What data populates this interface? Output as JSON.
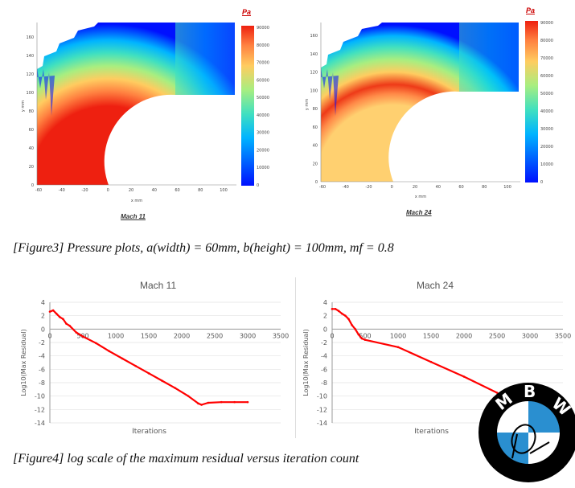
{
  "figure3": {
    "caption": "[Figure3] Pressure plots, a(width) = 60mm, b(height) = 100mm, mf = 0.8",
    "colorbar_unit": "Pa",
    "colors": [
      "#0010ff",
      "#00b4ff",
      "#40e0c0",
      "#a8ee80",
      "#ffcc60",
      "#ff8040",
      "#ee2010"
    ],
    "plots": [
      {
        "label": "Mach 11",
        "x_axis_label": "x mm",
        "y_axis_label": "y mm",
        "x_ticks": [
          "-60",
          "-40",
          "-20",
          "0",
          "20",
          "40",
          "60",
          "80",
          "100"
        ],
        "y_ticks": [
          "0",
          "20",
          "40",
          "60",
          "80",
          "100",
          "120",
          "140",
          "160"
        ],
        "colorbar_ticks": [
          "0",
          "10000",
          "20000",
          "30000",
          "40000",
          "50000",
          "60000",
          "70000",
          "80000",
          "90000"
        ]
      },
      {
        "label": "Mach 24",
        "x_axis_label": "x mm",
        "y_axis_label": "y mm",
        "x_ticks": [
          "-60",
          "-40",
          "-20",
          "0",
          "20",
          "40",
          "60",
          "80",
          "100"
        ],
        "y_ticks": [
          "0",
          "20",
          "40",
          "60",
          "80",
          "100",
          "120",
          "140",
          "160"
        ],
        "colorbar_ticks": [
          "0",
          "10000",
          "20000",
          "30000",
          "40000",
          "50000",
          "60000",
          "70000",
          "80000",
          "90000"
        ]
      }
    ]
  },
  "figure4": {
    "caption": "[Figure4] log scale of the maximum residual versus iteration count",
    "line_color": "#ff0000",
    "x_ticks": [
      "0",
      "500",
      "1000",
      "1500",
      "2000",
      "2500",
      "3000",
      "3500"
    ],
    "y_ticks": [
      "4",
      "2",
      "0",
      "-2",
      "-4",
      "-6",
      "-8",
      "-10",
      "-12",
      "-14"
    ]
  },
  "chart_data": [
    {
      "type": "line",
      "title": "Mach 11",
      "xlabel": "Iterations",
      "ylabel": "Log10(Max Residual)",
      "xlim": [
        0,
        3500
      ],
      "ylim": [
        -14,
        4
      ],
      "grid": true,
      "series": [
        {
          "x": [
            0,
            50,
            100,
            150,
            200,
            250,
            300,
            400,
            500,
            700,
            900,
            1100,
            1300,
            1500,
            1700,
            1900,
            2100,
            2250,
            2300,
            2400,
            2600,
            2800,
            3000
          ],
          "y": [
            2.6,
            2.8,
            2.3,
            1.8,
            1.5,
            0.8,
            0.5,
            -0.5,
            -1.1,
            -2.1,
            -3.3,
            -4.4,
            -5.5,
            -6.6,
            -7.7,
            -8.8,
            -10.0,
            -11.1,
            -11.3,
            -11.0,
            -10.9,
            -10.9,
            -10.9
          ]
        }
      ]
    },
    {
      "type": "line",
      "title": "Mach 24",
      "xlabel": "Iterations",
      "ylabel": "Log10(Max Residual)",
      "xlim": [
        0,
        3500
      ],
      "ylim": [
        -14,
        4
      ],
      "grid": true,
      "series": [
        {
          "x": [
            0,
            50,
            100,
            150,
            200,
            250,
            300,
            350,
            400,
            450,
            500,
            1000,
            1500,
            2000,
            2500,
            2700
          ],
          "y": [
            3.0,
            3.0,
            2.7,
            2.3,
            2.0,
            1.5,
            0.6,
            0.0,
            -0.8,
            -1.4,
            -1.6,
            -2.7,
            -4.9,
            -7.1,
            -9.5,
            -10.8
          ]
        }
      ]
    }
  ],
  "logo": {
    "letters": [
      "M",
      "B",
      "W"
    ]
  }
}
